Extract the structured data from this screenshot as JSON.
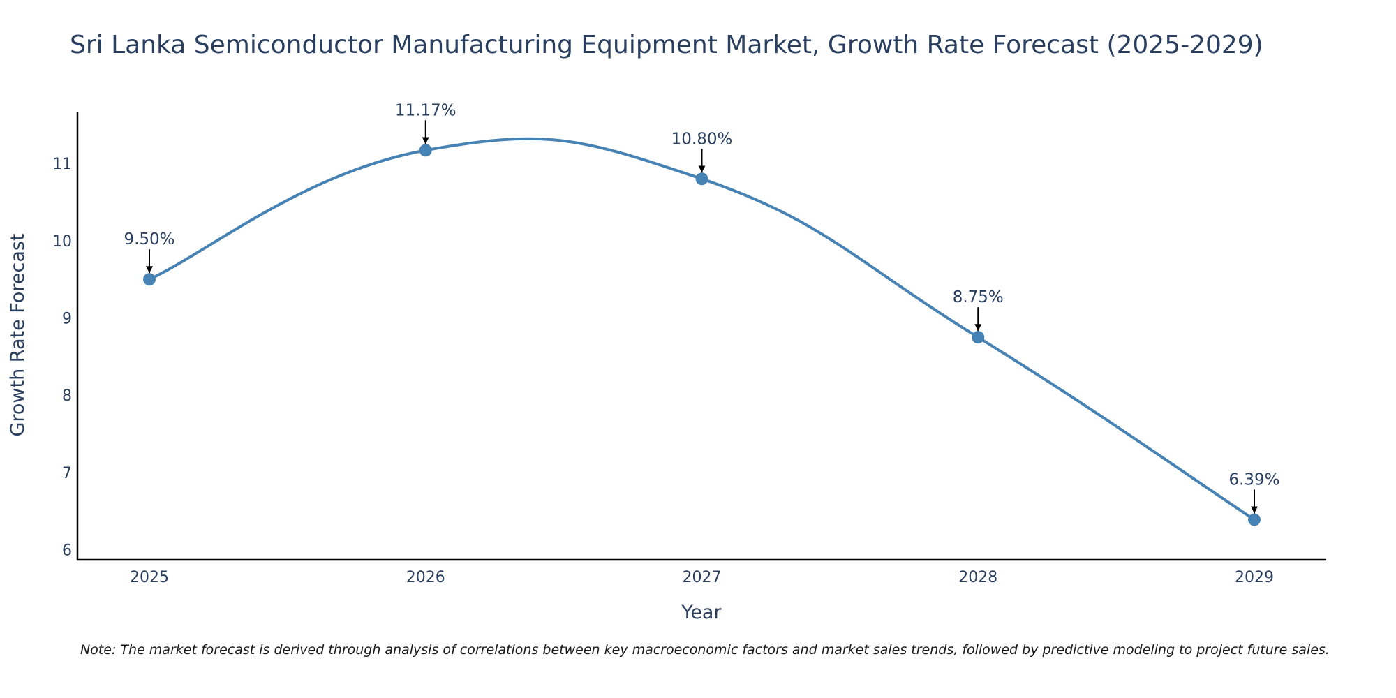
{
  "chart_data": {
    "type": "line",
    "title": "Sri Lanka Semiconductor Manufacturing Equipment Market, Growth Rate Forecast (2025-2029)",
    "xlabel": "Year",
    "ylabel": "Growth Rate Forecast",
    "categories": [
      "2025",
      "2026",
      "2027",
      "2028",
      "2029"
    ],
    "series": [
      {
        "name": "Growth Rate Forecast",
        "values": [
          9.5,
          11.17,
          10.8,
          8.75,
          6.39
        ]
      }
    ],
    "data_labels": [
      "9.50%",
      "11.17%",
      "10.80%",
      "8.75%",
      "6.39%"
    ],
    "ylim": [
      5.87,
      11.67
    ],
    "yticks": [
      6,
      7,
      8,
      9,
      10,
      11
    ],
    "grid": false,
    "line_shape": "spline",
    "line_color": "#4682b4",
    "marker_color": "#4682b4",
    "annotation_arrow_color": "#000000"
  },
  "note": "Note: The market forecast is derived through analysis of correlations between key macroeconomic factors and market sales trends, followed by predictive modeling to project future sales."
}
